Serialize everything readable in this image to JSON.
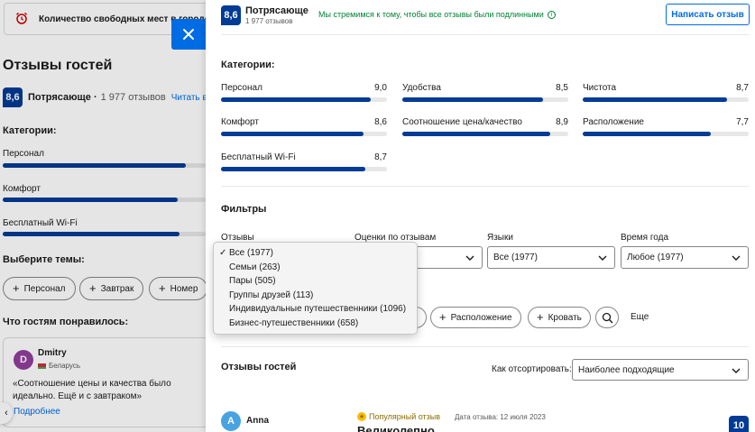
{
  "colors": {
    "accent": "#006ce4",
    "score_bg": "#003b95",
    "positive": "#008234",
    "bar_track": "#e7e7e7"
  },
  "background": {
    "notice_text": "Количество свободных мест в городе",
    "notice_icon": "alarm-clock-icon",
    "title": "Отзывы гостей",
    "score": "8,6",
    "score_label": "Потрясающе ·",
    "reviews_count": "1 977 отзывов",
    "read_all": "Читать в",
    "categories_heading": "Категории:",
    "categories": [
      {
        "name": "Персонал",
        "value": 9.0
      },
      {
        "name": "Комфорт",
        "value": 8.6
      },
      {
        "name": "Бесплатный Wi-Fi",
        "value": 8.7
      }
    ],
    "topics_heading": "Выберите темы:",
    "topics": [
      "Персонал",
      "Завтрак",
      "Номер"
    ],
    "liked_heading": "Что гостям понравилось:",
    "guest": {
      "initial": "D",
      "name": "Dmitry",
      "country": "Беларусь",
      "quote": "«Соотношение цены и качества было идеально. Ещё и с завтраком»",
      "more": "Подробнее"
    }
  },
  "panel": {
    "score": "8,6",
    "score_label": "Потрясающе",
    "reviews_count": "1 977 отзывов",
    "authenticity_note": "Мы стремимся к тому, чтобы все отзывы были подлинными",
    "write_review_button": "Написать отзыв",
    "categories_heading": "Категории:",
    "categories": [
      {
        "name": "Персонал",
        "score": "9,0",
        "value": 9.0
      },
      {
        "name": "Удобства",
        "score": "8,5",
        "value": 8.5
      },
      {
        "name": "Чистота",
        "score": "8,7",
        "value": 8.7
      },
      {
        "name": "Комфорт",
        "score": "8,6",
        "value": 8.6
      },
      {
        "name": "Соотношение цена/качество",
        "score": "8,9",
        "value": 8.9
      },
      {
        "name": "Расположение",
        "score": "7,7",
        "value": 7.7
      },
      {
        "name": "Бесплатный Wi-Fi",
        "score": "8,7",
        "value": 8.7
      }
    ],
    "category_scale_max": 10,
    "filters_heading": "Фильтры",
    "filters": {
      "reviewers_label": "Отзывы",
      "ratings_label": "Оценки по отзывам",
      "languages_label": "Языки",
      "languages_value": "Все (1977)",
      "season_label": "Время года",
      "season_value": "Любое (1977)"
    },
    "topics": [
      "Расположение",
      "Кровать"
    ],
    "more_topics": "Еще",
    "guest_reviews_heading": "Отзывы гостей",
    "sort_label": "Как отсортировать:",
    "sort_value": "Наиболее подходящие",
    "review": {
      "initial": "A",
      "name": "Anna",
      "badge": "Популярный отзыв",
      "date": "Дата отзыва: 12 июля 2023",
      "title": "Великолепно",
      "score": "10"
    }
  },
  "dropdown": {
    "selected_index": 0,
    "options": [
      "Все (1977)",
      "Семьи (263)",
      "Пары (505)",
      "Группы друзей (113)",
      "Индивидуальные путешественники (1096)",
      "Бизнес-путешественники (658)"
    ]
  }
}
